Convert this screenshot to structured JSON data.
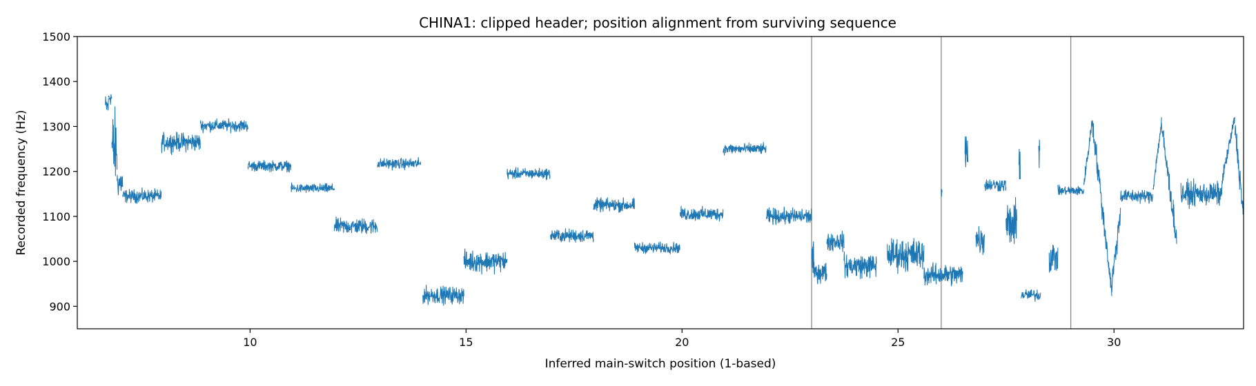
{
  "chart_data": {
    "type": "line",
    "title": "CHINA1: clipped header; position alignment from surviving sequence",
    "xlabel": "Inferred main-switch position (1-based)",
    "ylabel": "Recorded frequency (Hz)",
    "xlim": [
      6.0,
      33.0
    ],
    "ylim": [
      850,
      1500
    ],
    "xticks": [
      10,
      15,
      20,
      25,
      30
    ],
    "yticks": [
      900,
      1000,
      1100,
      1200,
      1300,
      1400,
      1500
    ],
    "grid": false,
    "series_color": "#1f77b4",
    "vline_color": "#808080",
    "vlines": [
      23.0,
      26.0,
      29.0
    ],
    "series": [
      {
        "x_start": 6.65,
        "x_end": 6.72,
        "kind": "flat",
        "level": 1345,
        "noise": 18
      },
      {
        "x_start": 6.72,
        "x_end": 6.8,
        "kind": "flat",
        "level": 1365,
        "noise": 12
      },
      {
        "x_start": 6.8,
        "x_end": 6.92,
        "kind": "flat",
        "level": 1250,
        "noise": 60
      },
      {
        "x_start": 6.92,
        "x_end": 7.05,
        "kind": "flat",
        "level": 1175,
        "noise": 22
      },
      {
        "x_start": 7.05,
        "x_end": 7.95,
        "kind": "flat",
        "level": 1145,
        "noise": 10
      },
      {
        "x_start": 7.95,
        "x_end": 8.85,
        "kind": "flat",
        "level": 1265,
        "noise": 14
      },
      {
        "x_start": 8.85,
        "x_end": 9.95,
        "kind": "flat",
        "level": 1302,
        "noise": 9
      },
      {
        "x_start": 9.95,
        "x_end": 10.95,
        "kind": "flat",
        "level": 1212,
        "noise": 8
      },
      {
        "x_start": 10.95,
        "x_end": 11.95,
        "kind": "flat",
        "level": 1162,
        "noise": 7
      },
      {
        "x_start": 11.95,
        "x_end": 12.95,
        "kind": "flat",
        "level": 1078,
        "noise": 12
      },
      {
        "x_start": 12.95,
        "x_end": 13.95,
        "kind": "flat",
        "level": 1217,
        "noise": 8
      },
      {
        "x_start": 14.0,
        "x_end": 14.95,
        "kind": "flat",
        "level": 925,
        "noise": 13
      },
      {
        "x_start": 14.95,
        "x_end": 15.95,
        "kind": "flat",
        "level": 1000,
        "noise": 16
      },
      {
        "x_start": 15.95,
        "x_end": 16.95,
        "kind": "flat",
        "level": 1195,
        "noise": 8
      },
      {
        "x_start": 16.95,
        "x_end": 17.95,
        "kind": "flat",
        "level": 1057,
        "noise": 10
      },
      {
        "x_start": 17.95,
        "x_end": 18.9,
        "kind": "flat",
        "level": 1125,
        "noise": 10
      },
      {
        "x_start": 18.9,
        "x_end": 19.95,
        "kind": "flat",
        "level": 1030,
        "noise": 8
      },
      {
        "x_start": 19.95,
        "x_end": 20.95,
        "kind": "flat",
        "level": 1105,
        "noise": 10
      },
      {
        "x_start": 20.95,
        "x_end": 21.95,
        "kind": "flat",
        "level": 1250,
        "noise": 8
      },
      {
        "x_start": 21.95,
        "x_end": 23.0,
        "kind": "flat",
        "level": 1100,
        "noise": 12
      },
      {
        "x_start": 23.0,
        "x_end": 23.05,
        "kind": "flat",
        "level": 1000,
        "noise": 30
      },
      {
        "x_start": 23.05,
        "x_end": 23.35,
        "kind": "flat",
        "level": 975,
        "noise": 15
      },
      {
        "x_start": 23.35,
        "x_end": 23.75,
        "kind": "flat",
        "level": 1045,
        "noise": 15
      },
      {
        "x_start": 23.75,
        "x_end": 24.5,
        "kind": "flat",
        "level": 990,
        "noise": 18
      },
      {
        "x_start": 24.75,
        "x_end": 25.6,
        "kind": "flat",
        "level": 1015,
        "noise": 25
      },
      {
        "x_start": 25.6,
        "x_end": 26.5,
        "kind": "flat",
        "level": 970,
        "noise": 16
      },
      {
        "x_start": 26.0,
        "x_end": 26.02,
        "kind": "flat",
        "level": 1150,
        "noise": 10
      },
      {
        "x_start": 26.55,
        "x_end": 26.62,
        "kind": "flat",
        "level": 1260,
        "noise": 40
      },
      {
        "x_start": 26.8,
        "x_end": 27.0,
        "kind": "flat",
        "level": 1050,
        "noise": 25
      },
      {
        "x_start": 27.0,
        "x_end": 27.5,
        "kind": "flat",
        "level": 1170,
        "noise": 10
      },
      {
        "x_start": 27.5,
        "x_end": 27.75,
        "kind": "flat",
        "level": 1080,
        "noise": 35
      },
      {
        "x_start": 27.8,
        "x_end": 27.83,
        "kind": "flat",
        "level": 1230,
        "noise": 40
      },
      {
        "x_start": 27.85,
        "x_end": 28.3,
        "kind": "flat",
        "level": 925,
        "noise": 9
      },
      {
        "x_start": 28.25,
        "x_end": 28.28,
        "kind": "flat",
        "level": 1250,
        "noise": 35
      },
      {
        "x_start": 28.5,
        "x_end": 28.7,
        "kind": "flat",
        "level": 1010,
        "noise": 25
      },
      {
        "x_start": 28.7,
        "x_end": 29.3,
        "kind": "flat",
        "level": 1157,
        "noise": 7
      },
      {
        "x_start": 29.3,
        "x_end": 29.5,
        "kind": "ramp",
        "from": 1170,
        "to": 1315,
        "noise": 10
      },
      {
        "x_start": 29.5,
        "x_end": 29.8,
        "kind": "ramp",
        "from": 1310,
        "to": 1060,
        "noise": 20
      },
      {
        "x_start": 29.8,
        "x_end": 29.95,
        "kind": "ramp",
        "from": 1060,
        "to": 930,
        "noise": 15
      },
      {
        "x_start": 29.95,
        "x_end": 30.15,
        "kind": "ramp",
        "from": 950,
        "to": 1110,
        "noise": 20
      },
      {
        "x_start": 30.15,
        "x_end": 30.9,
        "kind": "flat",
        "level": 1145,
        "noise": 10
      },
      {
        "x_start": 30.9,
        "x_end": 31.1,
        "kind": "ramp",
        "from": 1160,
        "to": 1310,
        "noise": 10
      },
      {
        "x_start": 31.1,
        "x_end": 31.45,
        "kind": "ramp",
        "from": 1300,
        "to": 1050,
        "noise": 20
      },
      {
        "x_start": 31.55,
        "x_end": 32.5,
        "kind": "flat",
        "level": 1150,
        "noise": 18
      },
      {
        "x_start": 32.5,
        "x_end": 32.8,
        "kind": "ramp",
        "from": 1180,
        "to": 1320,
        "noise": 10
      },
      {
        "x_start": 32.8,
        "x_end": 33.0,
        "kind": "ramp",
        "from": 1300,
        "to": 1100,
        "noise": 20
      }
    ]
  }
}
